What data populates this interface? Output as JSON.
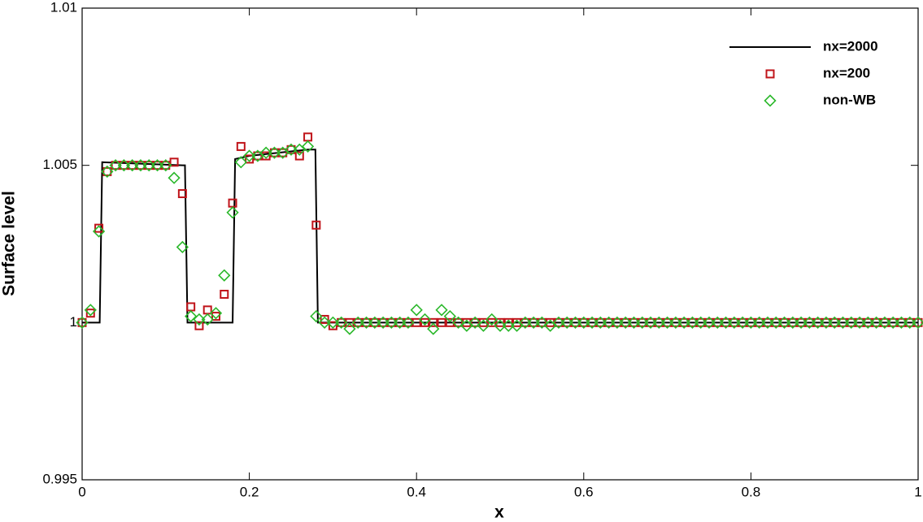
{
  "chart_data": {
    "type": "scatter",
    "x_label": "x",
    "y_label": "Surface level",
    "xlim": [
      0,
      1
    ],
    "ylim": [
      0.995,
      1.01
    ],
    "xticks": [
      0,
      0.2,
      0.4,
      0.6,
      0.8,
      1
    ],
    "yticks": [
      0.995,
      1,
      1.005,
      1.01
    ],
    "legend": "upper right",
    "x": [
      0,
      0.01,
      0.02,
      0.03,
      0.04,
      0.05,
      0.06,
      0.07,
      0.08,
      0.09,
      0.1,
      0.11,
      0.12,
      0.13,
      0.14,
      0.15,
      0.16,
      0.17,
      0.18,
      0.19,
      0.2,
      0.21,
      0.22,
      0.23,
      0.24,
      0.25,
      0.26,
      0.27,
      0.28,
      0.29,
      0.3,
      0.31,
      0.32,
      0.33,
      0.34,
      0.35,
      0.36,
      0.37,
      0.38,
      0.39,
      0.4,
      0.41,
      0.42,
      0.43,
      0.44,
      0.45,
      0.46,
      0.47,
      0.48,
      0.49,
      0.5,
      0.51,
      0.52,
      0.53,
      0.54,
      0.55,
      0.56,
      0.57,
      0.58,
      0.59,
      0.6,
      0.61,
      0.62,
      0.63,
      0.64,
      0.65,
      0.66,
      0.67,
      0.68,
      0.69,
      0.7,
      0.71,
      0.72,
      0.73,
      0.74,
      0.75,
      0.76,
      0.77,
      0.78,
      0.79,
      0.8,
      0.81,
      0.82,
      0.83,
      0.84,
      0.85,
      0.86,
      0.87,
      0.88,
      0.89,
      0.9,
      0.91,
      0.92,
      0.93,
      0.94,
      0.95,
      0.96,
      0.97,
      0.98,
      0.99,
      1
    ],
    "series": [
      {
        "name": "nx=2000",
        "color": "#000000",
        "marker": "line",
        "x": [
          0,
          0.021,
          0.024,
          0.12,
          0.123,
          0.126,
          0.177,
          0.18,
          0.183,
          0.2,
          0.27,
          0.279,
          0.282,
          1
        ],
        "values": [
          1,
          1,
          1.0051,
          1.005,
          1.005,
          1.0,
          1.0,
          1.0,
          1.0052,
          1.0053,
          1.0055,
          1.0055,
          1.0,
          1.0
        ]
      },
      {
        "name": "nx=200",
        "color": "#c0141a",
        "marker": "square",
        "values": [
          1,
          1.0003,
          1.003,
          1.0048,
          1.005,
          1.005,
          1.005,
          1.005,
          1.005,
          1.005,
          1.005,
          1.0051,
          1.0041,
          1.0005,
          0.9999,
          1.0004,
          1.0002,
          1.0009,
          1.0038,
          1.0056,
          1.0052,
          1.0053,
          1.0053,
          1.0054,
          1.0054,
          1.0055,
          1.0053,
          1.0059,
          1.0031,
          1.0001,
          0.9999,
          1,
          1,
          1,
          1,
          1,
          1,
          1,
          1,
          1,
          1,
          1,
          1,
          1,
          1,
          1,
          1,
          1,
          1,
          1,
          1,
          1,
          1,
          1,
          1,
          1,
          1,
          1,
          1,
          1,
          1,
          1,
          1,
          1,
          1,
          1,
          1,
          1,
          1,
          1,
          1,
          1,
          1,
          1,
          1,
          1,
          1,
          1,
          1,
          1,
          1,
          1,
          1,
          1,
          1,
          1,
          1,
          1,
          1,
          1,
          1,
          1,
          1,
          1,
          1,
          1,
          1,
          1,
          1,
          1,
          1
        ]
      },
      {
        "name": "non-WB",
        "color": "#2bb82b",
        "marker": "diamond",
        "values": [
          1,
          1.0004,
          1.0029,
          1.0048,
          1.005,
          1.005,
          1.005,
          1.005,
          1.005,
          1.005,
          1.005,
          1.0046,
          1.0024,
          1.0002,
          1.0001,
          1.0001,
          1.0003,
          1.0015,
          1.0035,
          1.0051,
          1.0053,
          1.0053,
          1.0054,
          1.0054,
          1.0054,
          1.0055,
          1.0055,
          1.0056,
          1.0002,
          1,
          1,
          1,
          0.9998,
          1,
          1,
          1,
          1,
          1,
          1,
          1,
          1.0004,
          1.0001,
          0.9998,
          1.0004,
          1.0002,
          1,
          0.9999,
          1,
          0.9999,
          1.0001,
          0.9999,
          0.9999,
          0.9999,
          1,
          1,
          1,
          0.9999,
          1,
          1,
          1,
          1,
          1,
          1,
          1,
          1,
          1,
          1,
          1,
          1,
          1,
          1,
          1,
          1,
          1,
          1,
          1,
          1,
          1,
          1,
          1,
          1,
          1,
          1,
          1,
          1,
          1,
          1,
          1,
          1,
          1,
          1,
          1,
          1,
          1,
          1,
          1,
          1,
          1,
          1,
          1,
          1
        ]
      }
    ]
  }
}
